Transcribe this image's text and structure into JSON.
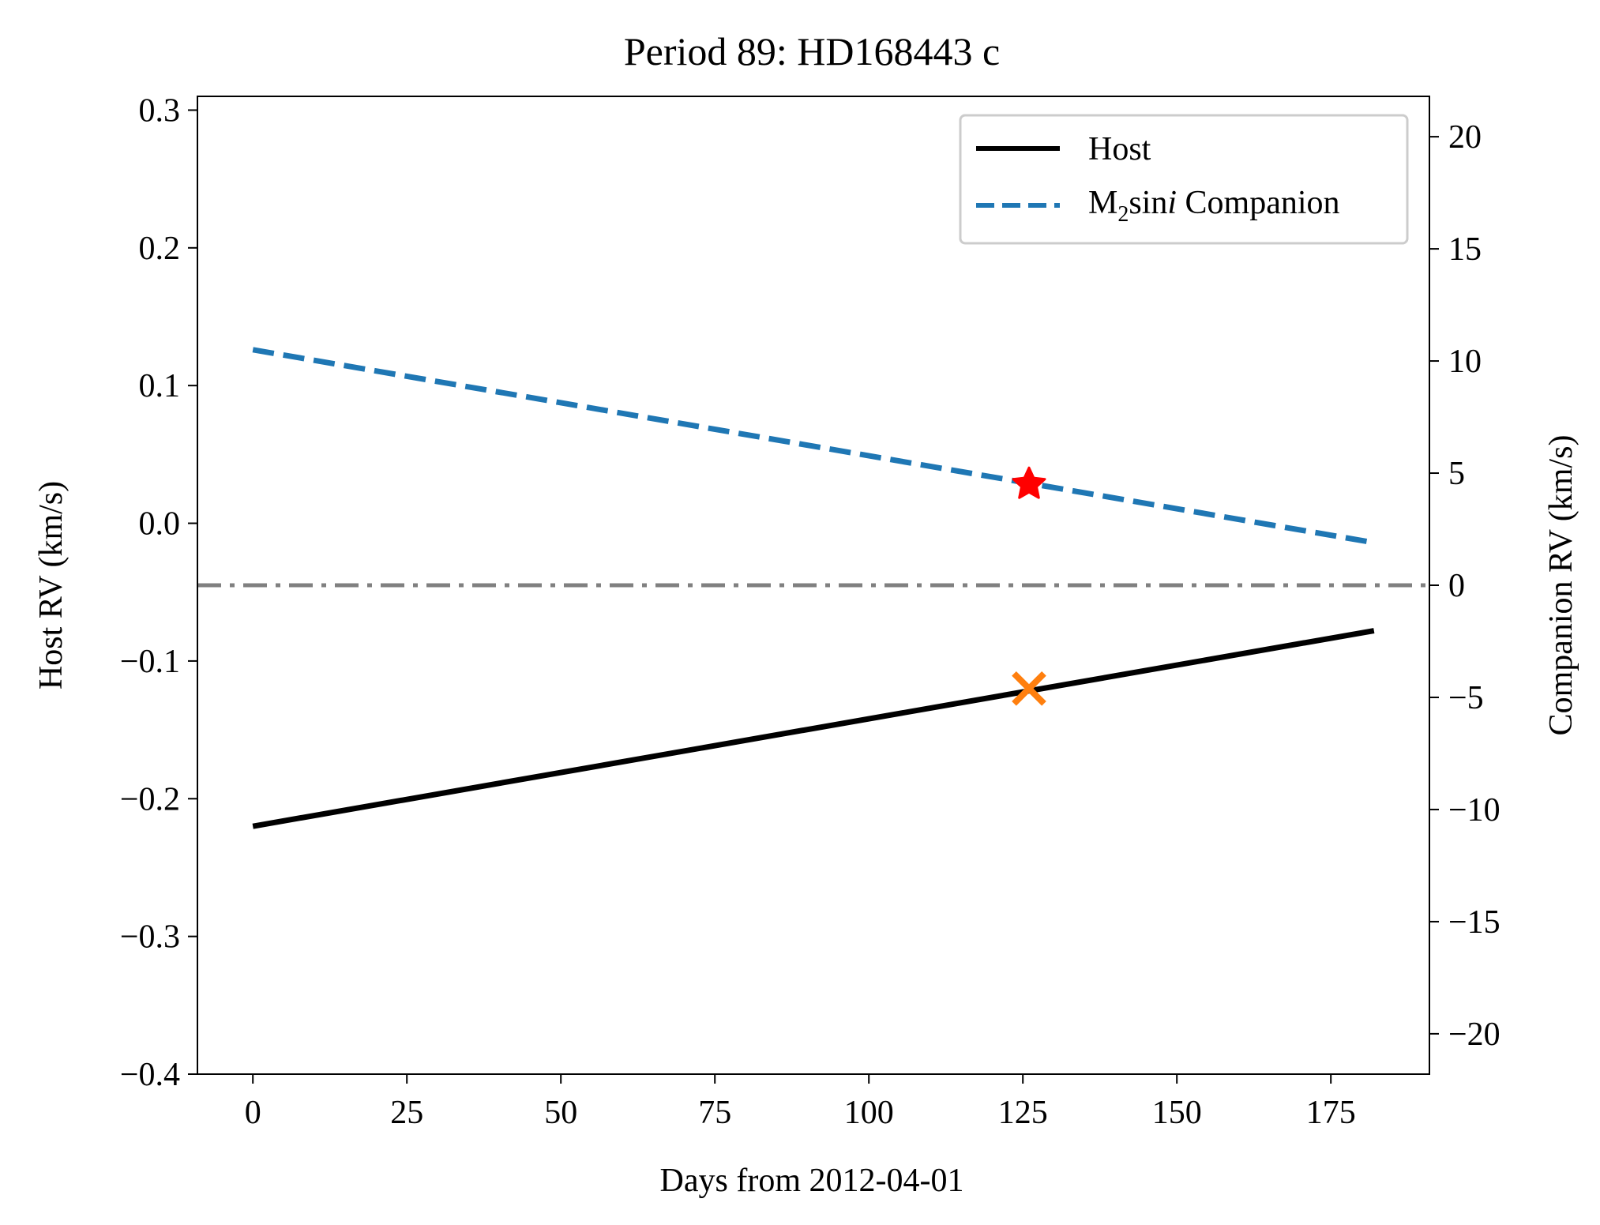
{
  "chart_data": {
    "type": "line",
    "title": "Period 89: HD168443 c",
    "xlabel": "Days from 2012-04-01",
    "ylabel_left": "Host RV (km/s)",
    "ylabel_right": "Companion RV (km/s)",
    "xlim": [
      -9,
      191
    ],
    "ylim_left": [
      -0.4,
      0.31
    ],
    "ylim_right": [
      -21.8,
      21.8
    ],
    "x_ticks": [
      0,
      25,
      50,
      75,
      100,
      125,
      150,
      175
    ],
    "x_tick_labels": [
      "0",
      "25",
      "50",
      "75",
      "100",
      "125",
      "150",
      "175"
    ],
    "y_left_ticks": [
      0.3,
      0.2,
      0.1,
      0.0,
      -0.1,
      -0.2,
      -0.3,
      -0.4
    ],
    "y_left_tick_labels": [
      "0.3",
      "0.2",
      "0.1",
      "0.0",
      "−0.1",
      "−0.2",
      "−0.3",
      "−0.4"
    ],
    "y_right_ticks": [
      20,
      15,
      10,
      5,
      0,
      -5,
      -10,
      -15,
      -20
    ],
    "y_right_tick_labels": [
      "20",
      "15",
      "10",
      "5",
      "0",
      "−5",
      "−10",
      "−15",
      "−20"
    ],
    "grid": false,
    "legend_position": "top-right",
    "series": [
      {
        "name": "Host",
        "axis": "left",
        "style": "solid",
        "color": "#000000",
        "x": [
          0,
          182
        ],
        "y": [
          -0.22,
          -0.078
        ]
      },
      {
        "name_parts": [
          "M",
          "2",
          "sin",
          "i",
          " Companion"
        ],
        "axis": "right",
        "style": "dashed",
        "color": "#1f77b4",
        "x": [
          0,
          182
        ],
        "y": [
          10.5,
          1.9
        ]
      }
    ],
    "reference_line": {
      "axis": "right",
      "y": 0,
      "style": "dashdot",
      "color": "#808080"
    },
    "markers": [
      {
        "shape": "star",
        "color": "#ff0000",
        "axis": "right",
        "x": 126,
        "y": 4.5
      },
      {
        "shape": "x",
        "color": "#ff7f0e",
        "axis": "left",
        "x": 126,
        "y": -0.12
      }
    ]
  }
}
